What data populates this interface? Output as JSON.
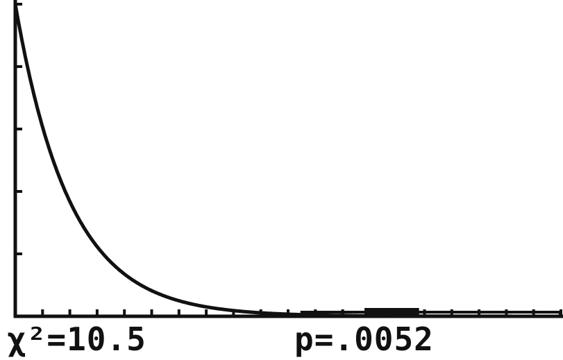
{
  "readouts": {
    "statistic": "χ²=10.5",
    "p_value": "p=.0052"
  },
  "colors": {
    "ink": "#111111",
    "background": "#ffffff",
    "shade": "#111111"
  },
  "chart_data": {
    "type": "line",
    "title": "",
    "xlabel": "",
    "ylabel": "",
    "distribution": "chi-square",
    "df": 2,
    "x": [
      0,
      1,
      2,
      3,
      4,
      5,
      6,
      7,
      8,
      9,
      10,
      10.5,
      11,
      12,
      13,
      14,
      15,
      16,
      17,
      18,
      19,
      20
    ],
    "y": [
      0.5,
      0.303,
      0.184,
      0.112,
      0.068,
      0.041,
      0.025,
      0.015,
      0.009,
      0.0056,
      0.0034,
      0.0026,
      0.002,
      0.0012,
      0.0008,
      0.0005,
      0.0003,
      0.0002,
      0.0001,
      0.0001,
      0.0001,
      0.0
    ],
    "statistic": 10.5,
    "p_value": 0.0052,
    "shaded_from": 10.5,
    "xlim": [
      0,
      20
    ],
    "ylim": [
      0,
      0.5
    ],
    "x_tick_step": 1,
    "y_tick_step": 0.1,
    "grid": false,
    "legend": "none"
  }
}
